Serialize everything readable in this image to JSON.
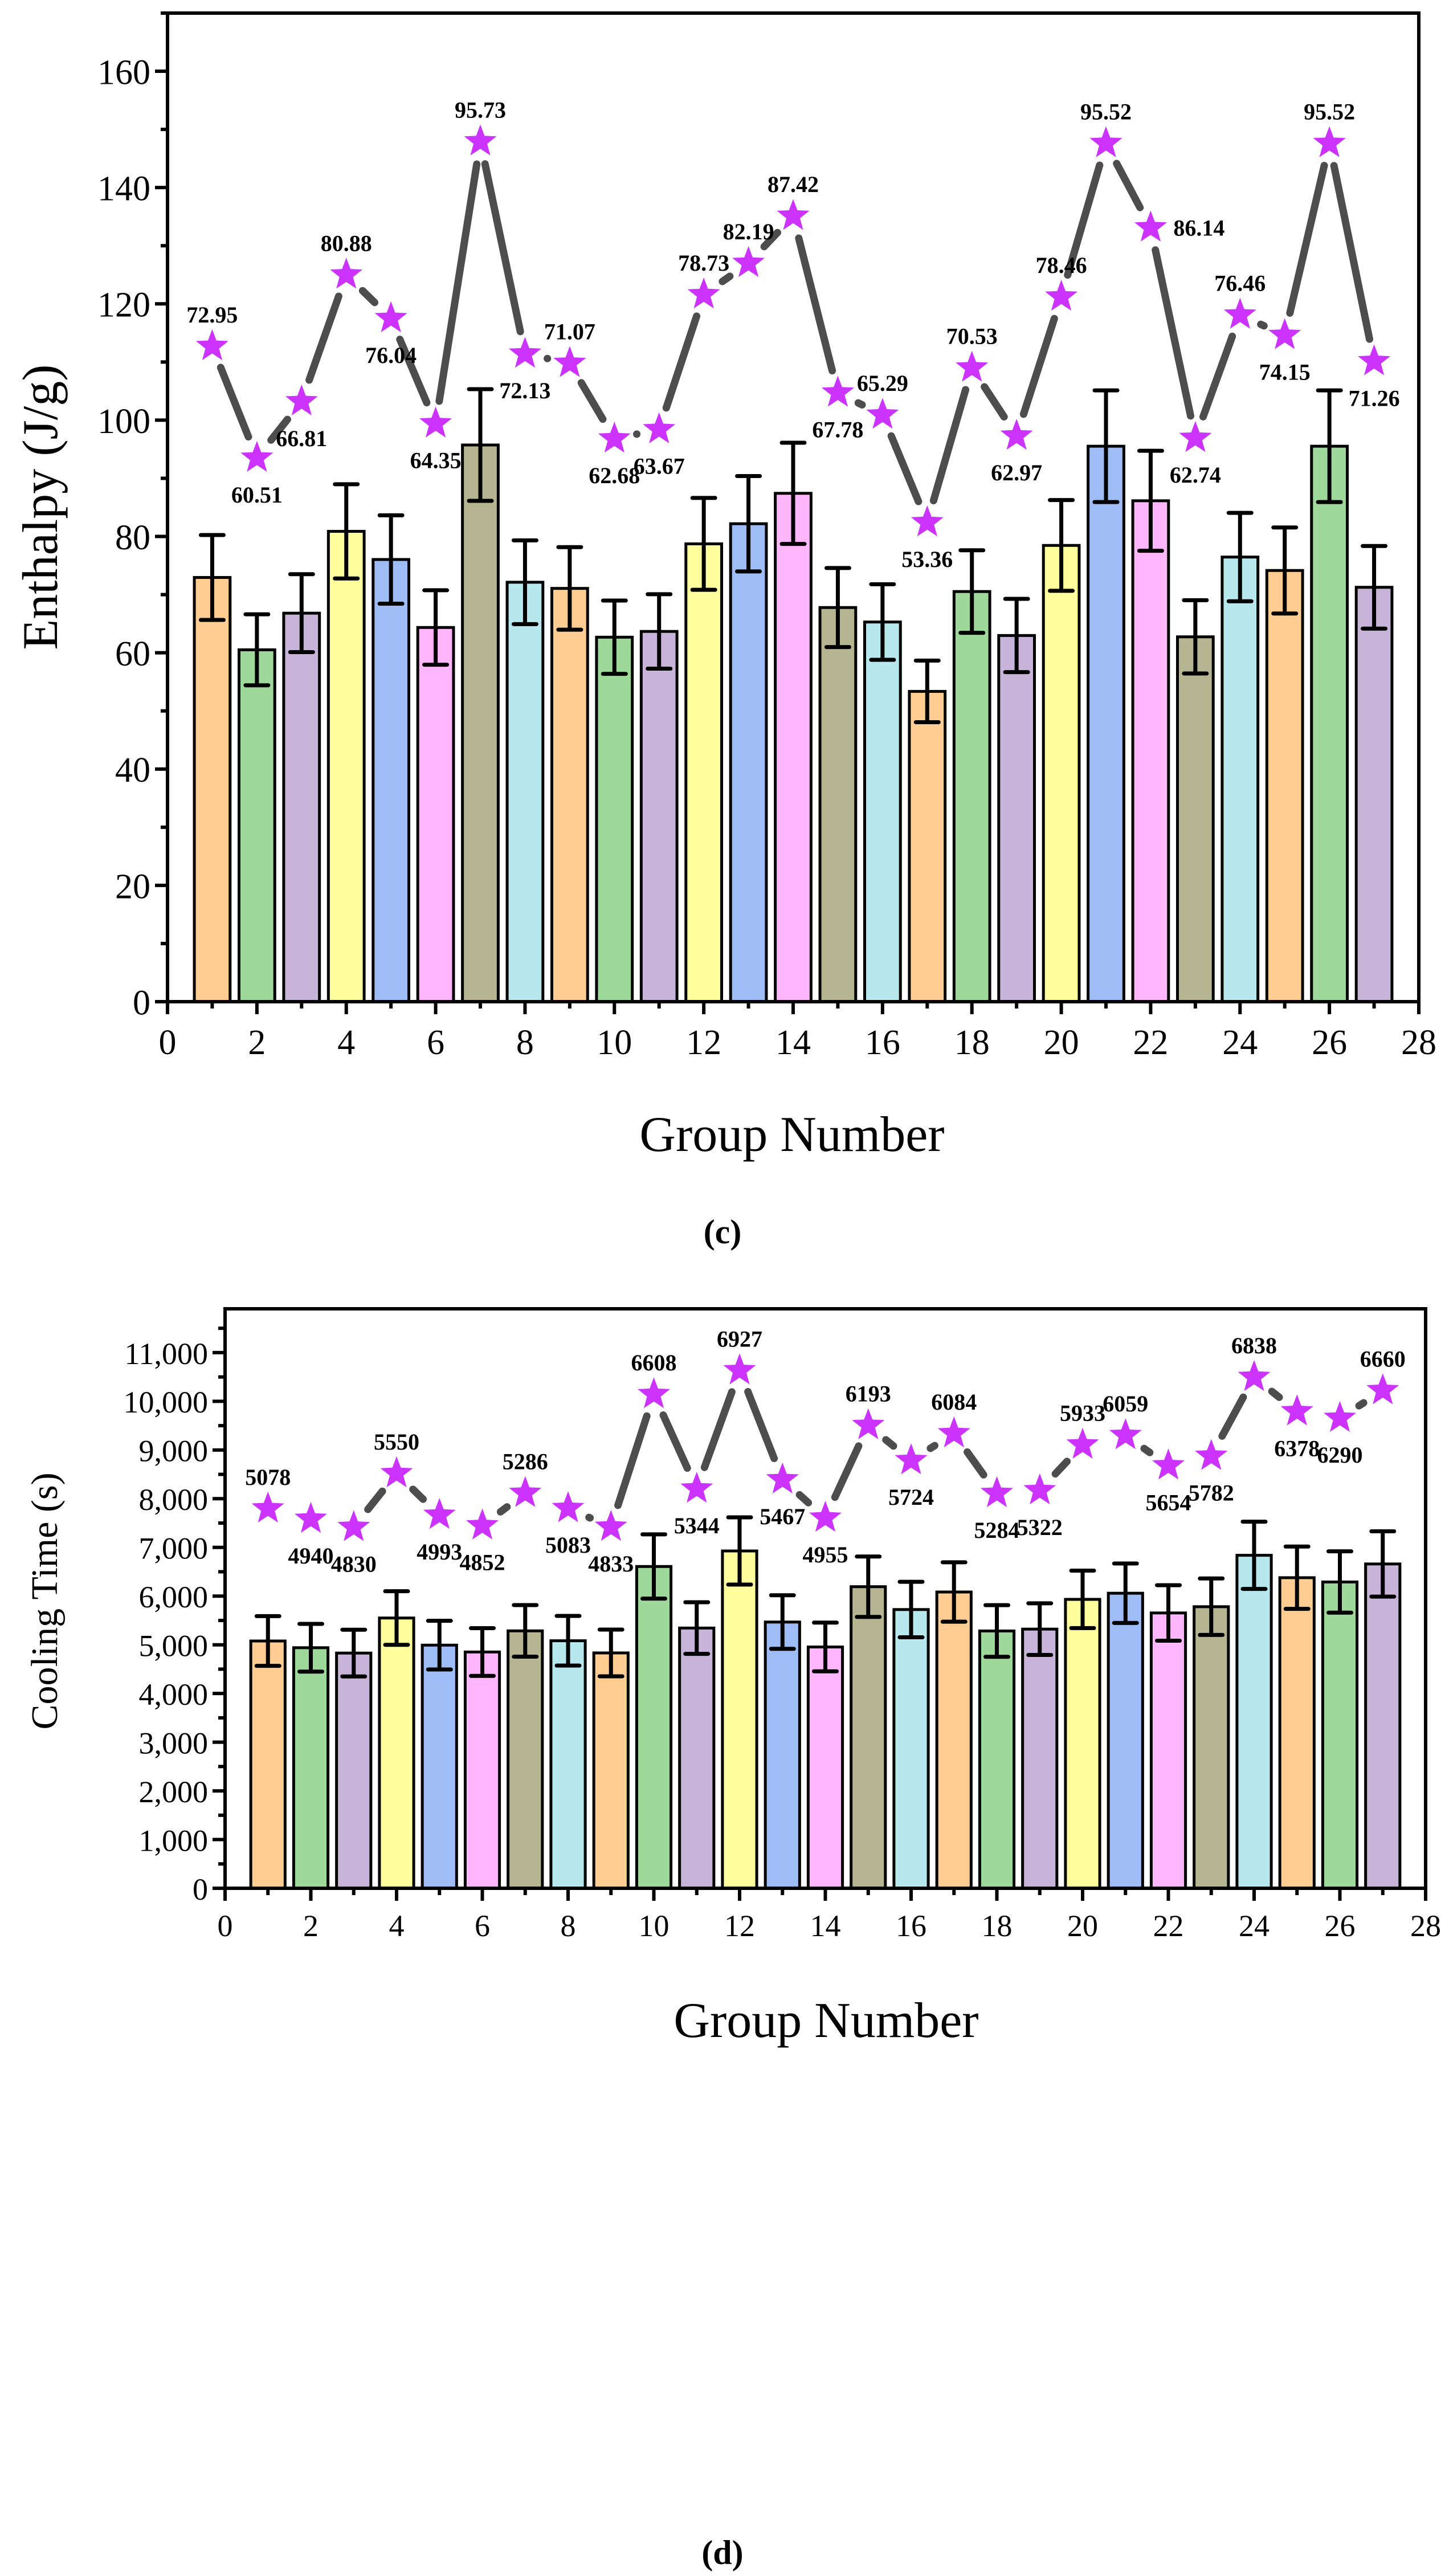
{
  "palette": [
    "#FFCC91",
    "#9ED89A",
    "#C8B4D8",
    "#FFFF9E",
    "#9EBCF5",
    "#FFB6FA",
    "#B5B591",
    "#B6E8EE"
  ],
  "star_color": "#CC33FF",
  "line_color": "#4D4D4D",
  "chart_data": [
    {
      "type": "bar",
      "panel_label": "(c)",
      "xlabel": "Group Number",
      "ylabel": "Enthalpy (J/g)",
      "xlim": [
        0,
        28
      ],
      "ylim": [
        0,
        170
      ],
      "xticks": [
        0,
        2,
        4,
        6,
        8,
        10,
        12,
        14,
        16,
        18,
        20,
        22,
        24,
        26,
        28
      ],
      "yticks": [
        0,
        20,
        40,
        60,
        80,
        100,
        120,
        140,
        160
      ],
      "ytick_labels": [
        "0",
        "20",
        "40",
        "60",
        "80",
        "100",
        "120",
        "140",
        "160"
      ],
      "categories": [
        1,
        2,
        3,
        4,
        5,
        6,
        7,
        8,
        9,
        10,
        11,
        12,
        13,
        14,
        15,
        16,
        17,
        18,
        19,
        20,
        21,
        22,
        23,
        24,
        25,
        26,
        27
      ],
      "values": [
        72.95,
        60.51,
        66.81,
        80.88,
        76.04,
        64.35,
        95.73,
        72.13,
        71.07,
        62.68,
        63.67,
        78.73,
        82.19,
        87.42,
        67.78,
        65.29,
        53.36,
        70.53,
        62.97,
        78.46,
        95.52,
        86.14,
        62.74,
        76.46,
        74.15,
        95.52,
        71.26
      ],
      "errors": [
        7.3,
        6.1,
        6.7,
        8.1,
        7.6,
        6.4,
        9.6,
        7.2,
        7.1,
        6.3,
        6.4,
        7.9,
        8.2,
        8.7,
        6.8,
        6.5,
        5.3,
        7.1,
        6.3,
        7.8,
        9.6,
        8.6,
        6.3,
        7.6,
        7.4,
        9.6,
        7.1
      ],
      "labels": [
        "72.95",
        "60.51",
        "66.81",
        "80.88",
        "76.04",
        "64.35",
        "95.73",
        "72.13",
        "71.07",
        "62.68",
        "63.67",
        "78.73",
        "82.19",
        "87.42",
        "67.78",
        "65.29",
        "53.36",
        "70.53",
        "62.97",
        "78.46",
        "95.52",
        "86.14",
        "62.74",
        "76.46",
        "74.15",
        "95.52",
        "71.26"
      ],
      "line_values": [
        112.7,
        93.5,
        103.2,
        125.0,
        117.5,
        99.4,
        147.9,
        111.4,
        109.8,
        96.8,
        98.4,
        121.6,
        127.0,
        135.1,
        104.7,
        100.9,
        82.4,
        109.0,
        97.3,
        121.2,
        147.6,
        133.1,
        96.9,
        118.1,
        114.6,
        147.6,
        110.1
      ],
      "label_side": [
        "above",
        "below",
        "below",
        "above",
        "below",
        "below",
        "above",
        "below",
        "above",
        "below",
        "below",
        "above",
        "above",
        "above",
        "below",
        "above",
        "below",
        "above",
        "below",
        "above",
        "above",
        "right",
        "below",
        "above",
        "below",
        "above",
        "below"
      ]
    },
    {
      "type": "bar",
      "panel_label": "(d)",
      "xlabel": "Group Number",
      "ylabel": "Cooling Time (s)",
      "xlim": [
        0,
        28
      ],
      "ylim": [
        0,
        11900
      ],
      "xticks": [
        0,
        2,
        4,
        6,
        8,
        10,
        12,
        14,
        16,
        18,
        20,
        22,
        24,
        26,
        28
      ],
      "yticks": [
        0,
        1000,
        2000,
        3000,
        4000,
        5000,
        6000,
        7000,
        8000,
        9000,
        10000,
        11000
      ],
      "ytick_labels": [
        "0",
        "1,000",
        "2,000",
        "3,000",
        "4,000",
        "5,000",
        "6,000",
        "7,000",
        "8,000",
        "9,000",
        "10,000",
        "11,000"
      ],
      "categories": [
        1,
        2,
        3,
        4,
        5,
        6,
        7,
        8,
        9,
        10,
        11,
        12,
        13,
        14,
        15,
        16,
        17,
        18,
        19,
        20,
        21,
        22,
        23,
        24,
        25,
        26,
        27
      ],
      "values": [
        5078,
        4940,
        4830,
        5550,
        4993,
        4852,
        5286,
        5083,
        4833,
        6608,
        5344,
        6927,
        5467,
        4955,
        6193,
        5724,
        6084,
        5284,
        5322,
        5933,
        6059,
        5654,
        5782,
        6838,
        6378,
        6290,
        6660
      ],
      "errors": [
        510,
        490,
        480,
        550,
        500,
        490,
        530,
        510,
        480,
        660,
        530,
        690,
        550,
        500,
        620,
        570,
        610,
        530,
        530,
        590,
        610,
        570,
        580,
        690,
        640,
        630,
        670
      ],
      "labels": [
        "5078",
        "4940",
        "4830",
        "5550",
        "4993",
        "4852",
        "5286",
        "5083",
        "4833",
        "6608",
        "5344",
        "6927",
        "5467",
        "4955",
        "6193",
        "5724",
        "6084",
        "5284",
        "5322",
        "5933",
        "6059",
        "5654",
        "5782",
        "6838",
        "6378",
        "6290",
        "6660"
      ],
      "line_values": [
        7795,
        7583,
        7414,
        8519,
        7664,
        7448,
        8114,
        7802,
        7419,
        10143,
        8203,
        10633,
        8392,
        7606,
        9506,
        8786,
        9339,
        8111,
        8169,
        9107,
        9301,
        8679,
        8875,
        10496,
        9790,
        9655,
        10223
      ],
      "label_side": [
        "above",
        "below",
        "below",
        "above",
        "below",
        "below",
        "above",
        "below",
        "below",
        "above",
        "below",
        "above",
        "below",
        "below",
        "above",
        "below",
        "above",
        "below",
        "below",
        "above",
        "above",
        "below",
        "below",
        "above",
        "below",
        "below",
        "above"
      ]
    }
  ]
}
